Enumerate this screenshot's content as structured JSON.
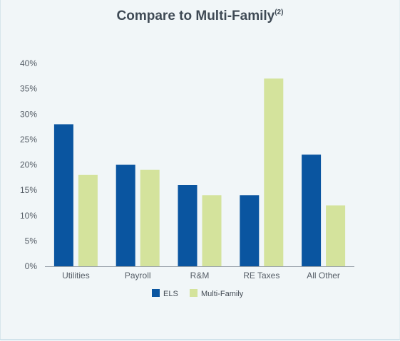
{
  "chart_data": {
    "type": "bar",
    "title": "Compare to Multi-Family",
    "title_superscript": "(2)",
    "categories": [
      "Utilities",
      "Payroll",
      "R&M",
      "RE Taxes",
      "All Other"
    ],
    "series": [
      {
        "name": "ELS",
        "color": "#0a55a0",
        "values": [
          28,
          20,
          16,
          14,
          22
        ]
      },
      {
        "name": "Multi-Family",
        "color": "#d4e39c",
        "values": [
          18,
          19,
          14,
          37,
          12
        ]
      }
    ],
    "ylim": [
      0,
      40
    ],
    "yticks": [
      0,
      5,
      10,
      15,
      20,
      25,
      30,
      35,
      40
    ],
    "ytick_suffix": "%",
    "xlabel": "",
    "ylabel": "",
    "grid": false,
    "legend_position": "bottom-center"
  }
}
